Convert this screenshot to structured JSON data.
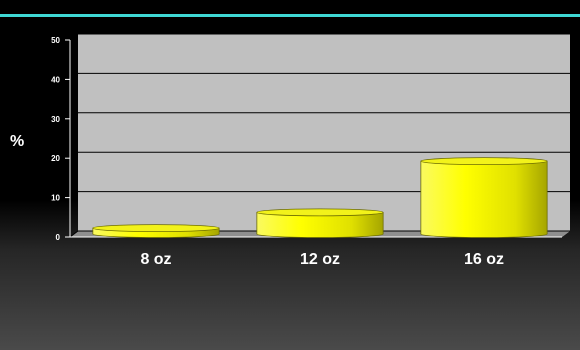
{
  "chart_data": {
    "type": "bar",
    "style": "3d-cylinder",
    "categories": [
      "8 oz",
      "12 oz",
      "16 oz"
    ],
    "values": [
      2,
      6,
      19
    ],
    "ylabel": "%",
    "xlabel": "",
    "ylim": [
      0,
      50
    ],
    "yticks": [
      0,
      10,
      20,
      30,
      40,
      50
    ],
    "grid": true,
    "legend": "none"
  },
  "colors": {
    "bar_fill": "#ffff00",
    "bar_shadow": "#b5b500",
    "plot_background": "#c0c0c0",
    "accent_rule": "#3fd8d4"
  }
}
